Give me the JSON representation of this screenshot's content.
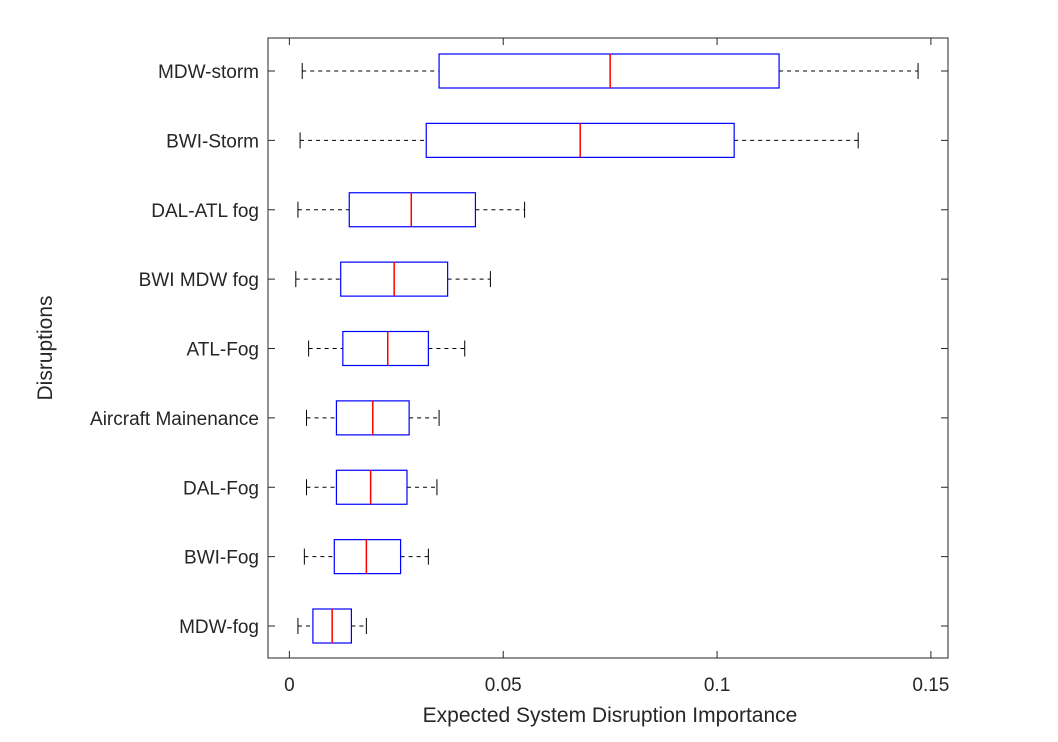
{
  "chart_data": {
    "type": "boxplot",
    "orientation": "horizontal",
    "xlabel": "Expected System Disruption Importance",
    "ylabel": "Disruptions",
    "xlim": [
      -0.005,
      0.154
    ],
    "xticks": [
      0,
      0.05,
      0.1,
      0.15
    ],
    "xtick_labels": [
      "0",
      "0.05",
      "0.1",
      "0.15"
    ],
    "grid": false,
    "colors": {
      "box": "#0000ff",
      "median": "#ff0000",
      "whisker": "#000000"
    },
    "categories": [
      "MDW-storm",
      "BWI-Storm",
      "DAL-ATL fog",
      "BWI MDW fog",
      "ATL-Fog",
      "Aircraft Mainenance",
      "DAL-Fog",
      "BWI-Fog",
      "MDW-fog"
    ],
    "boxes": [
      {
        "min": 0.003,
        "q1": 0.035,
        "median": 0.075,
        "q3": 0.1145,
        "max": 0.147
      },
      {
        "min": 0.0025,
        "q1": 0.032,
        "median": 0.068,
        "q3": 0.104,
        "max": 0.133
      },
      {
        "min": 0.002,
        "q1": 0.014,
        "median": 0.0285,
        "q3": 0.0435,
        "max": 0.055
      },
      {
        "min": 0.0015,
        "q1": 0.012,
        "median": 0.0245,
        "q3": 0.037,
        "max": 0.047
      },
      {
        "min": 0.0045,
        "q1": 0.0125,
        "median": 0.023,
        "q3": 0.0325,
        "max": 0.041
      },
      {
        "min": 0.004,
        "q1": 0.011,
        "median": 0.0195,
        "q3": 0.028,
        "max": 0.035
      },
      {
        "min": 0.004,
        "q1": 0.011,
        "median": 0.019,
        "q3": 0.0275,
        "max": 0.0345
      },
      {
        "min": 0.0035,
        "q1": 0.0105,
        "median": 0.018,
        "q3": 0.026,
        "max": 0.0325
      },
      {
        "min": 0.002,
        "q1": 0.0055,
        "median": 0.01,
        "q3": 0.0145,
        "max": 0.018
      }
    ]
  }
}
